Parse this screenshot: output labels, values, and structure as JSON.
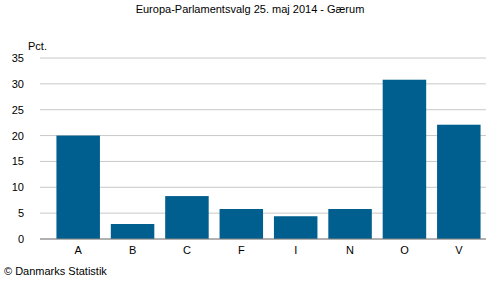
{
  "chart_data": {
    "type": "bar",
    "title": "Europa-Parlamentsvalg 25. maj 2014 - Gærum",
    "ylabel": "Pct.",
    "categories": [
      "A",
      "B",
      "C",
      "F",
      "I",
      "N",
      "O",
      "V"
    ],
    "values": [
      20.0,
      2.9,
      8.3,
      5.8,
      4.4,
      5.8,
      30.8,
      22.1
    ],
    "color": "#005f8f",
    "ylim": [
      0,
      35
    ],
    "yticks": [
      0,
      5,
      10,
      15,
      20,
      25,
      30,
      35
    ],
    "grid": true,
    "annotations": [
      "© Danmarks Statistik"
    ]
  }
}
